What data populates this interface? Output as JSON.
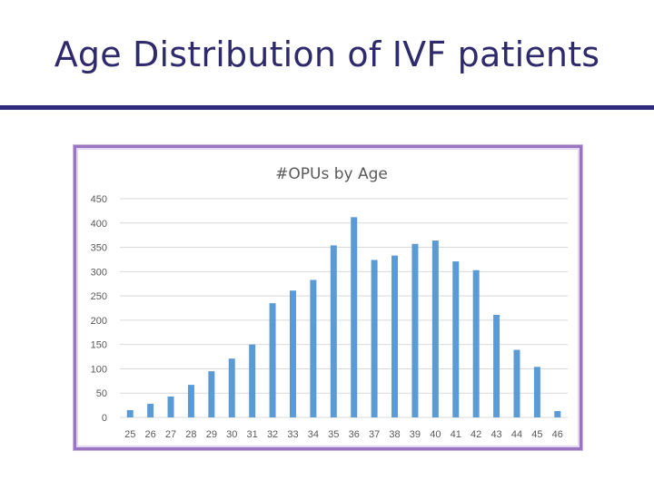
{
  "slide": {
    "title": "Age Distribution of IVF patients"
  },
  "colors": {
    "title": "#2e2a6b",
    "rule": "#2f2a7a",
    "frame": "#9b74c4",
    "bar": "#5b9bd5",
    "grid": "#d9d9d9",
    "axis_text": "#595959"
  },
  "chart_data": {
    "type": "bar",
    "title": "#OPUs by Age",
    "xlabel": "",
    "ylabel": "",
    "ylim": [
      0,
      450
    ],
    "yticks": [
      0,
      50,
      100,
      150,
      200,
      250,
      300,
      350,
      400,
      450
    ],
    "grid": true,
    "categories": [
      "25",
      "26",
      "27",
      "28",
      "29",
      "30",
      "31",
      "32",
      "33",
      "34",
      "35",
      "36",
      "37",
      "38",
      "39",
      "40",
      "41",
      "42",
      "43",
      "44",
      "45",
      "46"
    ],
    "values": [
      15,
      28,
      43,
      67,
      95,
      121,
      150,
      235,
      261,
      283,
      354,
      412,
      324,
      333,
      357,
      364,
      321,
      303,
      211,
      139,
      104,
      13
    ]
  }
}
